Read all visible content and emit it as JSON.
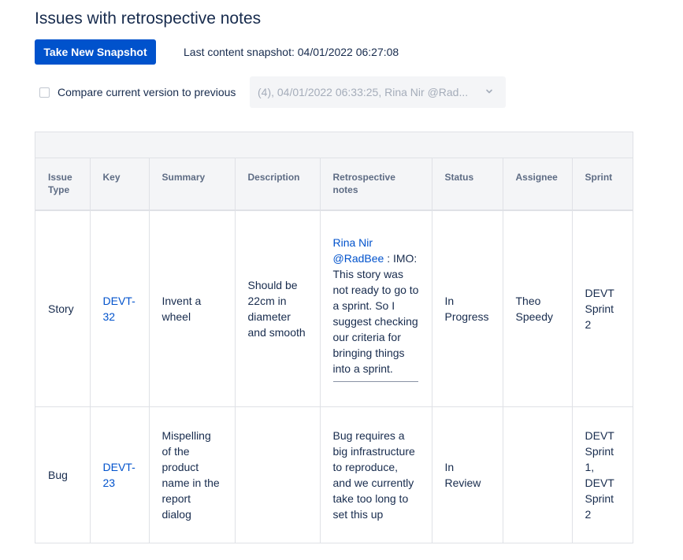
{
  "page": {
    "title": "Issues with retrospective notes"
  },
  "toolbar": {
    "snapshot_button": "Take New Snapshot",
    "last_snapshot": "Last content snapshot: 04/01/2022 06:27:08"
  },
  "compare": {
    "label": "Compare current version to previous",
    "checked": false,
    "selected_version": "(4), 04/01/2022 06:33:25, Rina Nir @Rad..."
  },
  "table": {
    "headers": {
      "issue_type": "Issue Type",
      "key": "Key",
      "summary": "Summary",
      "description": "Description",
      "retro": "Retrospective notes",
      "status": "Status",
      "assignee": "Assignee",
      "sprint": "Sprint"
    },
    "rows": [
      {
        "issue_type": "Story",
        "key": "DEVT-32",
        "summary": "Invent a wheel",
        "description": "Should be 22cm in diameter and smooth",
        "retro_mention": "Rina Nir @RadBee",
        "retro_text": " : IMO: This story was not ready to go to a sprint. So I suggest checking our criteria for bringing things into a sprint.",
        "status": "In Progress",
        "assignee": "Theo Speedy",
        "sprint": "DEVT Sprint 2"
      },
      {
        "issue_type": "Bug",
        "key": "DEVT-23",
        "summary": "Mispelling of the product name in the report dialog",
        "description": "",
        "retro_text": "Bug requires a big infrastructure to reproduce, and we currently take too long to set this up",
        "status": "In Review",
        "assignee": "",
        "sprint": "DEVT Sprint 1, DEVT Sprint 2"
      }
    ]
  },
  "colors": {
    "primary": "#0052cc",
    "header_bg": "#f4f5f7",
    "text": "#172b4d"
  }
}
